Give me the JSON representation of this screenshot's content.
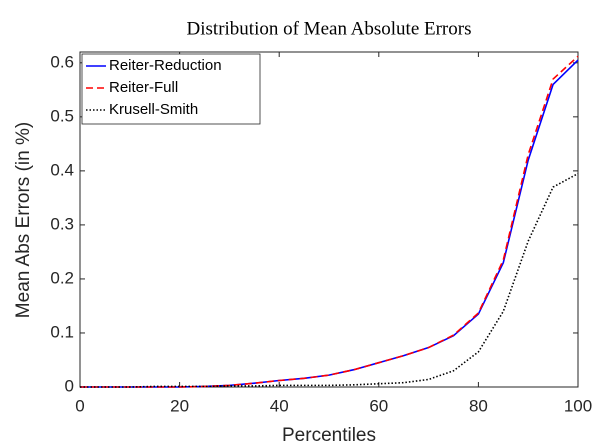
{
  "chart_data": {
    "type": "line",
    "title": "Distribution of Mean Absolute Errors",
    "x_label": "Percentiles",
    "y_label": "Mean Abs Errors (in %)",
    "x": [
      0,
      5,
      10,
      15,
      20,
      25,
      30,
      35,
      40,
      45,
      50,
      55,
      60,
      65,
      70,
      75,
      80,
      85,
      90,
      95,
      100
    ],
    "series": [
      {
        "name": "Reiter-Reduction",
        "color": "#0000ff",
        "line_style": "solid",
        "values": [
          0,
          0,
          0,
          0,
          0,
          0.001,
          0.003,
          0.007,
          0.012,
          0.016,
          0.022,
          0.032,
          0.045,
          0.058,
          0.073,
          0.095,
          0.135,
          0.23,
          0.42,
          0.56,
          0.605
        ]
      },
      {
        "name": "Reiter-Full",
        "color": "#ff0000",
        "line_style": "dashed",
        "values": [
          0,
          0,
          0,
          0,
          0,
          0.001,
          0.003,
          0.007,
          0.012,
          0.016,
          0.022,
          0.032,
          0.045,
          0.058,
          0.073,
          0.096,
          0.137,
          0.235,
          0.43,
          0.57,
          0.612
        ]
      },
      {
        "name": "Krusell-Smith",
        "color": "#000000",
        "line_style": "dotted",
        "values": [
          0,
          0,
          0,
          0.001,
          0.001,
          0.001,
          0.002,
          0.002,
          0.003,
          0.003,
          0.003,
          0.004,
          0.006,
          0.008,
          0.014,
          0.03,
          0.065,
          0.14,
          0.27,
          0.37,
          0.395
        ]
      }
    ],
    "xlim": [
      0,
      100
    ],
    "xticks": [
      0,
      20,
      40,
      60,
      80,
      100
    ],
    "ylim": [
      0,
      0.62
    ],
    "yticks": [
      0,
      0.1,
      0.2,
      0.3,
      0.4,
      0.5,
      0.6
    ],
    "legend": "upper left"
  }
}
